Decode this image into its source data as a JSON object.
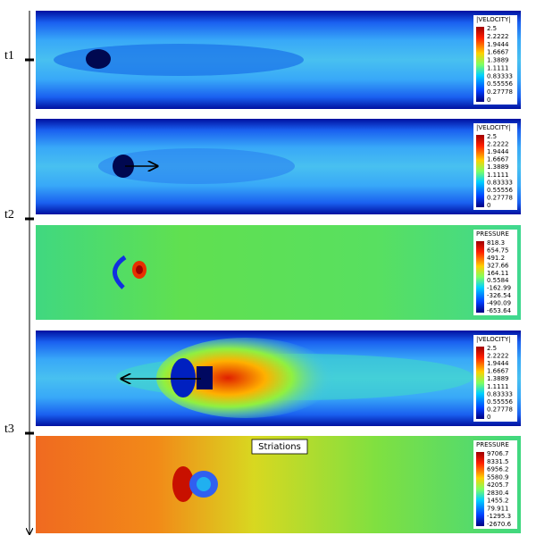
{
  "timeline": {
    "labels": [
      "t1",
      "t2",
      "t3"
    ]
  },
  "panels": [
    {
      "legend": {
        "title": "|VELOCITY|",
        "ticks": [
          "2.5",
          "2.2222",
          "1.9444",
          "1.6667",
          "1.3889",
          "1.1111",
          "0.83333",
          "0.55556",
          "0.27778",
          "0"
        ]
      }
    },
    {
      "legend": {
        "title": "|VELOCITY|",
        "ticks": [
          "2.5",
          "2.2222",
          "1.9444",
          "1.6667",
          "1.3889",
          "1.1111",
          "0.83333",
          "0.55556",
          "0.27778",
          "0"
        ]
      }
    },
    {
      "legend": {
        "title": "PRESSURE",
        "ticks": [
          "818.3",
          "654.75",
          "491.2",
          "327.66",
          "164.11",
          "0.5584",
          "-162.99",
          "-326.54",
          "-490.09",
          "-653.64"
        ]
      }
    },
    {
      "legend": {
        "title": "|VELOCITY|",
        "ticks": [
          "2.5",
          "2.2222",
          "1.9444",
          "1.6667",
          "1.3889",
          "1.1111",
          "0.83333",
          "0.55556",
          "0.27778",
          "0"
        ]
      }
    },
    {
      "legend": {
        "title": "PRESSURE",
        "ticks": [
          "9706.7",
          "8331.5",
          "6956.2",
          "5580.9",
          "4205.7",
          "2830.4",
          "1455.2",
          "79.911",
          "-1295.3",
          "-2670.6"
        ]
      },
      "annotation": "Striations"
    }
  ]
}
